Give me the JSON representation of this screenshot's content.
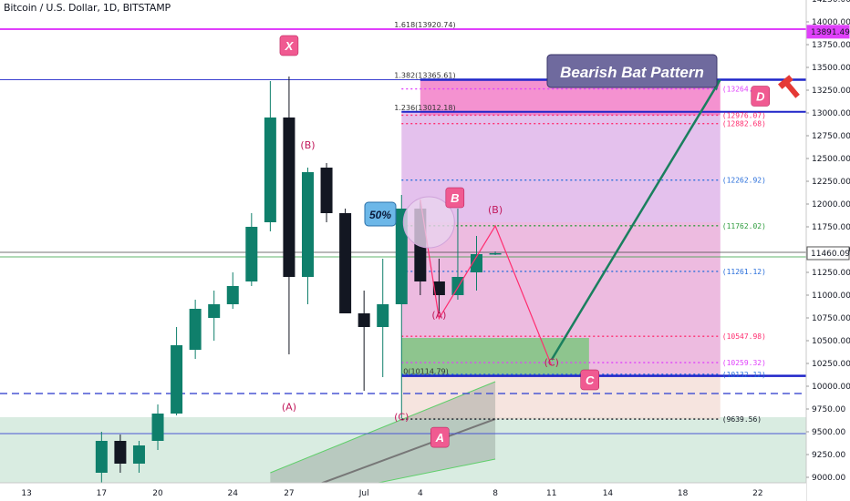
{
  "header": {
    "title": "Bitcoin / U.S. Dollar, 1D, BITSTAMP"
  },
  "colors": {
    "up": "#26a69a",
    "up_dark": "#0f7f6b",
    "down": "#131722",
    "magenta": "#e040fb",
    "blue": "#1f25c9",
    "pink_zone": "#f06ec0",
    "lavender_zone": "#d9a6e6",
    "green_zone": "#7cc77f",
    "title_badge": "#6f6a9e",
    "point_badge": "#f05a91",
    "trend_arrow": "#1a7f5e",
    "pattern_line": "#ff2d6f"
  },
  "chart_data": {
    "type": "candlestick",
    "symbol": "Bitcoin / U.S. Dollar",
    "interval": "1D",
    "exchange": "BITSTAMP",
    "x_tick_labels": [
      "13",
      "17",
      "20",
      "24",
      "27",
      "Jul",
      "4",
      "8",
      "11",
      "14",
      "18",
      "22"
    ],
    "x_tick_dates": [
      "2020-06-13",
      "2020-06-17",
      "2020-06-20",
      "2020-06-24",
      "2020-06-27",
      "2020-07-01",
      "2020-07-04",
      "2020-07-08",
      "2020-07-11",
      "2020-07-14",
      "2020-07-18",
      "2020-07-22"
    ],
    "x_range": [
      "2020-06-11",
      "2020-07-24"
    ],
    "ylim": [
      9000,
      14300
    ],
    "y_tick_labels": [
      "14250.00",
      "14000.00",
      "13750.00",
      "13500.00",
      "13250.00",
      "13000.00",
      "12750.00",
      "12500.00",
      "12250.00",
      "12000.00",
      "11750.00",
      "11500.00",
      "11250.00",
      "11000.00",
      "10750.00",
      "10500.00",
      "10250.00",
      "10000.00",
      "9750.00",
      "9500.00",
      "9250.00",
      "9000.00"
    ],
    "y_tick_values": [
      14250,
      14000,
      13750,
      13500,
      13250,
      13000,
      12750,
      12500,
      12250,
      12000,
      11750,
      11500,
      11250,
      11000,
      10750,
      10500,
      10250,
      10000,
      9750,
      9500,
      9250,
      9000
    ],
    "candles": [
      {
        "date": "2020-06-17",
        "open": 9050,
        "high": 9500,
        "low": 8900,
        "close": 9400
      },
      {
        "date": "2020-06-18",
        "open": 9400,
        "high": 9470,
        "low": 9050,
        "close": 9150
      },
      {
        "date": "2020-06-19",
        "open": 9150,
        "high": 9400,
        "low": 9050,
        "close": 9350
      },
      {
        "date": "2020-06-20",
        "open": 9400,
        "high": 9800,
        "low": 9300,
        "close": 9700
      },
      {
        "date": "2020-06-21",
        "open": 9700,
        "high": 10650,
        "low": 9680,
        "close": 10450
      },
      {
        "date": "2020-06-22",
        "open": 10400,
        "high": 10950,
        "low": 10300,
        "close": 10850
      },
      {
        "date": "2020-06-23",
        "open": 10750,
        "high": 11050,
        "low": 10500,
        "close": 10900
      },
      {
        "date": "2020-06-24",
        "open": 10900,
        "high": 11250,
        "low": 10850,
        "close": 11100
      },
      {
        "date": "2020-06-25",
        "open": 11150,
        "high": 11900,
        "low": 11100,
        "close": 11750
      },
      {
        "date": "2020-06-26",
        "open": 11800,
        "high": 13350,
        "low": 11700,
        "close": 12950
      },
      {
        "date": "2020-06-27",
        "open": 12950,
        "high": 13400,
        "low": 10350,
        "close": 11200
      },
      {
        "date": "2020-06-28",
        "open": 11200,
        "high": 12400,
        "low": 10900,
        "close": 12350
      },
      {
        "date": "2020-06-29",
        "open": 12400,
        "high": 12450,
        "low": 11800,
        "close": 11900
      },
      {
        "date": "2020-06-30",
        "open": 11900,
        "high": 11950,
        "low": 10800,
        "close": 10800
      },
      {
        "date": "2020-07-01",
        "open": 10800,
        "high": 11050,
        "low": 9950,
        "close": 10650
      },
      {
        "date": "2020-07-02",
        "open": 10650,
        "high": 11400,
        "low": 10100,
        "close": 10900
      },
      {
        "date": "2020-07-03",
        "open": 10900,
        "high": 12100,
        "low": 9650,
        "close": 11950
      },
      {
        "date": "2020-07-04",
        "open": 11950,
        "high": 12050,
        "low": 11000,
        "close": 11150
      },
      {
        "date": "2020-07-05",
        "open": 11150,
        "high": 11400,
        "low": 10800,
        "close": 11000
      },
      {
        "date": "2020-07-06",
        "open": 11000,
        "high": 11950,
        "low": 10950,
        "close": 11200
      },
      {
        "date": "2020-07-07",
        "open": 11250,
        "high": 11650,
        "low": 11050,
        "close": 11450
      },
      {
        "date": "2020-07-08",
        "open": 11450,
        "high": 11480,
        "low": 11440,
        "close": 11460
      }
    ],
    "price_levels": [
      {
        "price": 13891.49,
        "label": "13891.49",
        "color": "#e040fb",
        "style": "solid",
        "highlight": true
      },
      {
        "price": 13264.75,
        "label": "13264.75",
        "color": "#e040fb",
        "style": "dotted"
      },
      {
        "price": 12976.07,
        "label": "12976.07",
        "color": "#ff2d6f",
        "style": "dotted"
      },
      {
        "price": 12882.68,
        "label": "12882.68",
        "color": "#ff2d6f",
        "style": "dotted"
      },
      {
        "price": 12262.92,
        "label": "12262.92",
        "color": "#2a6fdb",
        "style": "dotted"
      },
      {
        "price": 11762.02,
        "label": "11762.02",
        "color": "#2e9c3d",
        "style": "dotted"
      },
      {
        "price": 11460.09,
        "label": "11460.09",
        "color": "#555555",
        "style": "solid",
        "highlight": true
      },
      {
        "price": 11261.12,
        "label": "11261.12",
        "color": "#2a6fdb",
        "style": "dotted"
      },
      {
        "price": 10547.98,
        "label": "10547.98",
        "color": "#ff2d6f",
        "style": "dotted"
      },
      {
        "price": 10259.32,
        "label": "10259.32",
        "color": "#e040fb",
        "style": "dotted"
      },
      {
        "price": 10132.12,
        "label": "10132.12",
        "color": "#2a6fdb",
        "style": "dotted"
      },
      {
        "price": 9639.56,
        "label": "9639.56",
        "color": "#131722",
        "style": "dotted"
      }
    ],
    "fib_labels": [
      {
        "text": "1.618(13920.74)",
        "price": 13920
      },
      {
        "text": "1.382(13365.61)",
        "price": 13365
      },
      {
        "text": "1.236(13012.18)",
        "price": 13012
      },
      {
        "text": "0(10114.79)",
        "price": 10114
      }
    ],
    "pattern_points": [
      {
        "label": "X",
        "date": "2020-06-26",
        "price": 13920
      },
      {
        "label": "A",
        "date": "2020-07-03",
        "price": 9639
      },
      {
        "label": "B",
        "date": "2020-07-04",
        "price": 12050
      },
      {
        "label": "C",
        "date": "2020-07-10",
        "price": 10250
      },
      {
        "label": "D",
        "date": "2020-07-20",
        "price": 13365
      }
    ],
    "abc_points": [
      {
        "label": "(B)",
        "date": "2020-06-28",
        "price": 12610
      },
      {
        "label": "(A)",
        "date": "2020-06-27",
        "price": 9735
      },
      {
        "label": "(C)",
        "date": "2020-07-03",
        "price": 9625
      },
      {
        "label": "(A)",
        "date": "2020-07-05",
        "price": 10745
      },
      {
        "label": "(B)",
        "date": "2020-07-08",
        "price": 11900
      },
      {
        "label": "(C)",
        "date": "2020-07-11",
        "price": 10227
      }
    ],
    "annotations": {
      "pattern_title": "Bearish Bat Pattern",
      "retracement": "50%"
    }
  }
}
